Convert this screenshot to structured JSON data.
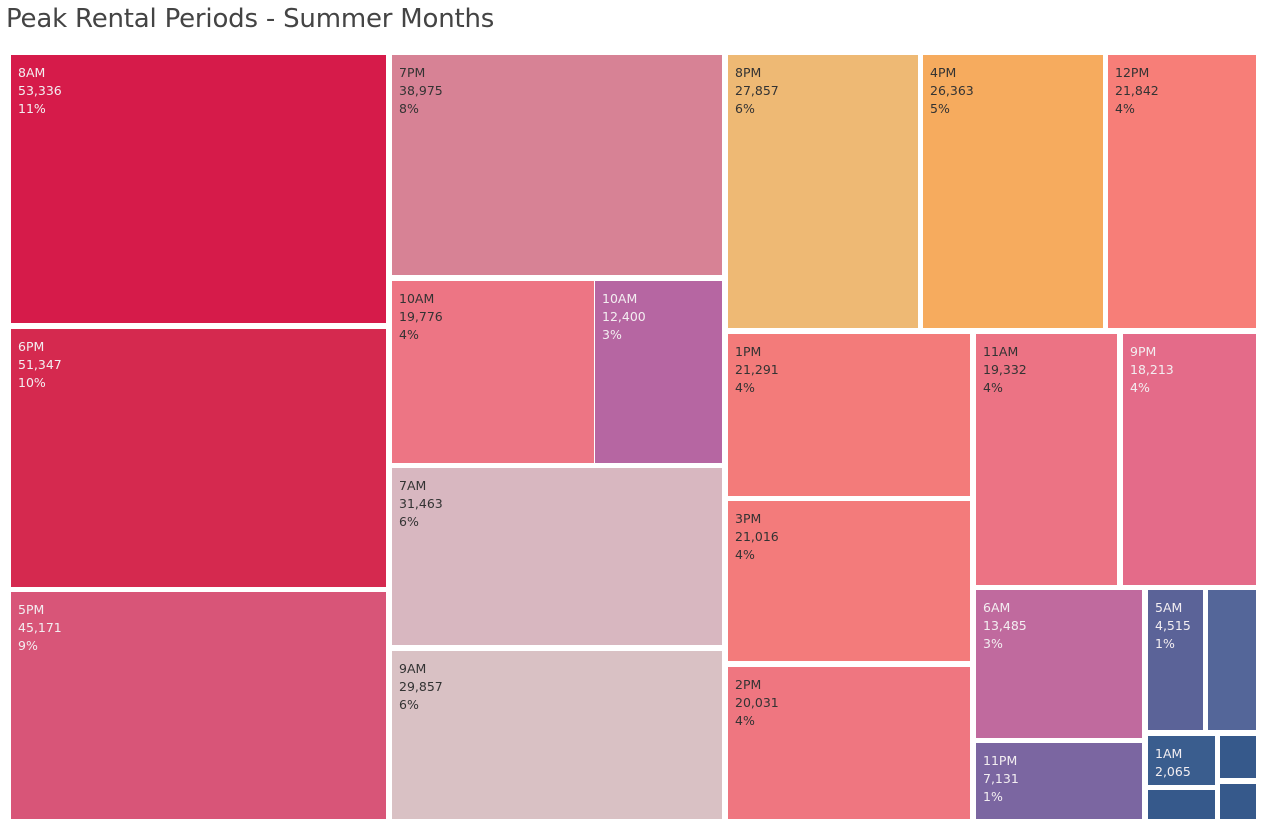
{
  "title": "Peak Rental Periods - Summer Months",
  "chart_data": {
    "type": "treemap",
    "title": "Peak Rental Periods - Summer Months",
    "items": [
      {
        "id": "t8am",
        "label": "8AM",
        "value": 53336,
        "value_text": "53,336",
        "pct_text": "11%",
        "color": "#d61b4a",
        "text": "light"
      },
      {
        "id": "t6pm",
        "label": "6PM",
        "value": 51347,
        "value_text": "51,347",
        "pct_text": "10%",
        "color": "#d5294f",
        "text": "light"
      },
      {
        "id": "t5pm",
        "label": "5PM",
        "value": 45171,
        "value_text": "45,171",
        "pct_text": "9%",
        "color": "#d85578",
        "text": "light"
      },
      {
        "id": "t7pm",
        "label": "7PM",
        "value": 38975,
        "value_text": "38,975",
        "pct_text": "8%",
        "color": "#d78295",
        "text": "dark"
      },
      {
        "id": "t10am-a",
        "label": "10AM",
        "value": 19776,
        "value_text": "19,776",
        "pct_text": "4%",
        "color": "#ed7584",
        "text": "dark"
      },
      {
        "id": "t10am-b",
        "label": "10AM",
        "value": 12400,
        "value_text": "12,400",
        "pct_text": "3%",
        "color": "#b666a2",
        "text": "light"
      },
      {
        "id": "t7am",
        "label": "7AM",
        "value": 31463,
        "value_text": "31,463",
        "pct_text": "6%",
        "color": "#d8b7c0",
        "text": "dark"
      },
      {
        "id": "t9am",
        "label": "9AM",
        "value": 29857,
        "value_text": "29,857",
        "pct_text": "6%",
        "color": "#d9c1c4",
        "text": "dark"
      },
      {
        "id": "t8pm",
        "label": "8PM",
        "value": 27857,
        "value_text": "27,857",
        "pct_text": "6%",
        "color": "#eeb974",
        "text": "dark"
      },
      {
        "id": "t4pm",
        "label": "4PM",
        "value": 26363,
        "value_text": "26,363",
        "pct_text": "5%",
        "color": "#f6ab5e",
        "text": "dark"
      },
      {
        "id": "t12pm",
        "label": "12PM",
        "value": 21842,
        "value_text": "21,842",
        "pct_text": "4%",
        "color": "#f77e78",
        "text": "dark"
      },
      {
        "id": "t1pm",
        "label": "1PM",
        "value": 21291,
        "value_text": "21,291",
        "pct_text": "4%",
        "color": "#f37b7a",
        "text": "dark"
      },
      {
        "id": "t3pm",
        "label": "3PM",
        "value": 21016,
        "value_text": "21,016",
        "pct_text": "4%",
        "color": "#f37b7b",
        "text": "dark"
      },
      {
        "id": "t2pm",
        "label": "2PM",
        "value": 20031,
        "value_text": "20,031",
        "pct_text": "4%",
        "color": "#ef7680",
        "text": "dark"
      },
      {
        "id": "t11am",
        "label": "11AM",
        "value": 19332,
        "value_text": "19,332",
        "pct_text": "4%",
        "color": "#ec7384",
        "text": "dark"
      },
      {
        "id": "t9pm",
        "label": "9PM",
        "value": 18213,
        "value_text": "18,213",
        "pct_text": "4%",
        "color": "#e46b89",
        "text": "light"
      },
      {
        "id": "t6am",
        "label": "6AM",
        "value": 13485,
        "value_text": "13,485",
        "pct_text": "3%",
        "color": "#c06a9e",
        "text": "light"
      },
      {
        "id": "t11pm",
        "label": "11PM",
        "value": 7131,
        "value_text": "7,131",
        "pct_text": "1%",
        "color": "#7b66a1",
        "text": "light"
      },
      {
        "id": "t5am",
        "label": "5AM",
        "value": 4515,
        "value_text": "4,515",
        "pct_text": "1%",
        "color": "#5b6398",
        "text": "light"
      },
      {
        "id": "t-unl-1",
        "label": "",
        "value": null,
        "value_text": "",
        "pct_text": "",
        "color": "#546699",
        "text": "light"
      },
      {
        "id": "t1am",
        "label": "1AM",
        "value": 2065,
        "value_text": "2,065",
        "pct_text": "",
        "color": "#3a5d8e",
        "text": "light"
      },
      {
        "id": "t-unl-2",
        "label": "",
        "value": null,
        "value_text": "",
        "pct_text": "",
        "color": "#36598b",
        "text": "light"
      },
      {
        "id": "t-unl-3",
        "label": "",
        "value": null,
        "value_text": "",
        "pct_text": "",
        "color": "#36598b",
        "text": "light"
      },
      {
        "id": "t-unl-4",
        "label": "",
        "value": null,
        "value_text": "",
        "pct_text": "",
        "color": "#36598b",
        "text": "light"
      }
    ]
  }
}
